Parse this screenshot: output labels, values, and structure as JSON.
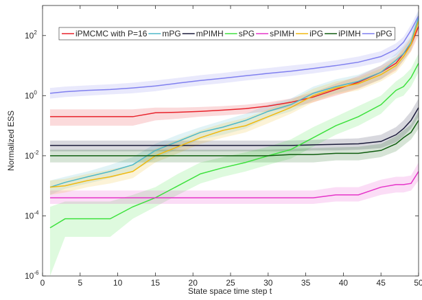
{
  "chart_data": {
    "type": "line",
    "xlabel": "State space time step t",
    "ylabel": "Normalized ESS",
    "x": [
      1,
      3,
      6,
      9,
      12,
      15,
      18,
      21,
      24,
      27,
      30,
      33,
      36,
      39,
      42,
      45,
      47,
      48,
      49,
      50
    ],
    "xlim": [
      0,
      50
    ],
    "xticks": [
      0,
      5,
      10,
      15,
      20,
      25,
      30,
      35,
      40,
      45,
      50
    ],
    "ylim": [
      1e-06,
      1000
    ],
    "log_y": true,
    "yticks": [
      {
        "value": 1e-06,
        "label": "10",
        "exponent": "-6"
      },
      {
        "value": 0.0001,
        "label": "10",
        "exponent": "-4"
      },
      {
        "value": 0.01,
        "label": "10",
        "exponent": "-2"
      },
      {
        "value": 1,
        "label": "10",
        "exponent": "0"
      },
      {
        "value": 100,
        "label": "10",
        "exponent": "2"
      }
    ],
    "grid": false,
    "legend": "upper left",
    "series": [
      {
        "name": "iPMCMC with P=16",
        "color": "#e8212a",
        "values": [
          0.2,
          0.2,
          0.2,
          0.2,
          0.2,
          0.27,
          0.28,
          0.3,
          0.33,
          0.37,
          0.45,
          0.6,
          0.9,
          1.6,
          2.8,
          6,
          12,
          25,
          50,
          200
        ],
        "lower": [
          0.1,
          0.1,
          0.1,
          0.1,
          0.1,
          0.15,
          0.17,
          0.2,
          0.22,
          0.25,
          0.3,
          0.4,
          0.6,
          1,
          1.7,
          3.5,
          7,
          15,
          30,
          100
        ],
        "upper": [
          0.35,
          0.35,
          0.35,
          0.35,
          0.35,
          0.4,
          0.4,
          0.42,
          0.45,
          0.5,
          0.6,
          0.8,
          1.3,
          2.5,
          4.5,
          10,
          20,
          40,
          90,
          400
        ]
      },
      {
        "name": "mPG",
        "color": "#4db8c8",
        "values": [
          0.0009,
          0.0013,
          0.002,
          0.003,
          0.005,
          0.015,
          0.03,
          0.06,
          0.09,
          0.15,
          0.3,
          0.5,
          1.2,
          2,
          3,
          6,
          15,
          25,
          60,
          400
        ],
        "lower": [
          0.0005,
          0.0008,
          0.0012,
          0.0018,
          0.003,
          0.008,
          0.017,
          0.035,
          0.05,
          0.08,
          0.18,
          0.3,
          0.7,
          1.2,
          1.8,
          3.5,
          8,
          15,
          35,
          200
        ],
        "upper": [
          0.0015,
          0.002,
          0.003,
          0.005,
          0.009,
          0.025,
          0.05,
          0.09,
          0.15,
          0.25,
          0.5,
          0.8,
          2,
          3.5,
          5,
          10,
          25,
          45,
          100,
          700
        ]
      },
      {
        "name": "mPIMH",
        "color": "#1a1a3a",
        "values": [
          0.022,
          0.022,
          0.022,
          0.022,
          0.022,
          0.022,
          0.022,
          0.022,
          0.022,
          0.022,
          0.022,
          0.022,
          0.023,
          0.024,
          0.025,
          0.03,
          0.05,
          0.08,
          0.15,
          0.4
        ],
        "lower": [
          0.014,
          0.014,
          0.014,
          0.014,
          0.014,
          0.014,
          0.014,
          0.014,
          0.014,
          0.014,
          0.014,
          0.014,
          0.015,
          0.015,
          0.016,
          0.018,
          0.028,
          0.045,
          0.08,
          0.2
        ],
        "upper": [
          0.032,
          0.032,
          0.032,
          0.032,
          0.032,
          0.032,
          0.032,
          0.032,
          0.032,
          0.032,
          0.032,
          0.032,
          0.034,
          0.036,
          0.038,
          0.05,
          0.09,
          0.15,
          0.3,
          0.8
        ]
      },
      {
        "name": "sPG",
        "color": "#3de13d",
        "values": [
          4e-05,
          8e-05,
          8e-05,
          8e-05,
          0.0002,
          0.0004,
          0.001,
          0.0025,
          0.004,
          0.006,
          0.01,
          0.016,
          0.04,
          0.1,
          0.2,
          0.5,
          1.5,
          2,
          4,
          12
        ],
        "lower": [
          1e-06,
          2e-05,
          2e-05,
          2e-05,
          8e-05,
          0.0002,
          0.0005,
          0.0012,
          0.002,
          0.003,
          0.005,
          0.008,
          0.02,
          0.05,
          0.1,
          0.25,
          0.8,
          1,
          2,
          6
        ],
        "upper": [
          0.0002,
          0.0003,
          0.0003,
          0.0003,
          0.0005,
          0.0009,
          0.0025,
          0.006,
          0.009,
          0.013,
          0.02,
          0.035,
          0.09,
          0.2,
          0.45,
          1,
          3,
          4.5,
          8,
          25
        ]
      },
      {
        "name": "sPIMH",
        "color": "#e533c8",
        "values": [
          0.0004,
          0.0004,
          0.0004,
          0.0004,
          0.0004,
          0.0004,
          0.0004,
          0.0004,
          0.0004,
          0.0004,
          0.0004,
          0.0004,
          0.0004,
          0.0005,
          0.0005,
          0.0009,
          0.0011,
          0.0011,
          0.0012,
          0.003
        ],
        "lower": [
          0.00025,
          0.00025,
          0.00025,
          0.00025,
          0.00025,
          0.00025,
          0.00025,
          0.00025,
          0.00025,
          0.00025,
          0.00025,
          0.00025,
          0.00025,
          0.0003,
          0.0003,
          0.0005,
          0.0006,
          0.0006,
          0.0007,
          0.0015
        ],
        "upper": [
          0.0007,
          0.0007,
          0.0007,
          0.0007,
          0.0007,
          0.0007,
          0.0007,
          0.0007,
          0.0007,
          0.0007,
          0.0007,
          0.0007,
          0.0007,
          0.0009,
          0.0009,
          0.0016,
          0.002,
          0.002,
          0.0022,
          0.006
        ]
      },
      {
        "name": "iPG",
        "color": "#f0b90f",
        "values": [
          0.0009,
          0.001,
          0.0015,
          0.002,
          0.003,
          0.01,
          0.02,
          0.04,
          0.07,
          0.1,
          0.2,
          0.4,
          1,
          1.8,
          2.5,
          5,
          10,
          20,
          50,
          300
        ],
        "lower": [
          0.0005,
          0.0006,
          0.0009,
          0.0012,
          0.0018,
          0.006,
          0.012,
          0.025,
          0.04,
          0.06,
          0.12,
          0.25,
          0.6,
          1.1,
          1.5,
          3,
          6,
          12,
          30,
          150
        ],
        "upper": [
          0.0015,
          0.0017,
          0.0025,
          0.0035,
          0.005,
          0.017,
          0.035,
          0.07,
          0.12,
          0.18,
          0.35,
          0.7,
          1.7,
          3,
          4,
          8,
          17,
          35,
          80,
          600
        ]
      },
      {
        "name": "iPIMH",
        "color": "#0e5c0e",
        "values": [
          0.01,
          0.01,
          0.01,
          0.01,
          0.01,
          0.01,
          0.01,
          0.01,
          0.01,
          0.01,
          0.01,
          0.011,
          0.011,
          0.012,
          0.012,
          0.015,
          0.025,
          0.04,
          0.06,
          0.15
        ],
        "lower": [
          0.006,
          0.006,
          0.006,
          0.006,
          0.006,
          0.006,
          0.006,
          0.006,
          0.006,
          0.006,
          0.006,
          0.006,
          0.006,
          0.007,
          0.007,
          0.009,
          0.014,
          0.022,
          0.035,
          0.08
        ],
        "upper": [
          0.016,
          0.016,
          0.016,
          0.016,
          0.016,
          0.016,
          0.016,
          0.016,
          0.016,
          0.016,
          0.016,
          0.017,
          0.018,
          0.019,
          0.02,
          0.025,
          0.045,
          0.07,
          0.11,
          0.3
        ]
      },
      {
        "name": "pPG",
        "color": "#7f7fef",
        "values": [
          1.2,
          1.35,
          1.5,
          1.6,
          1.8,
          2.1,
          2.6,
          3.2,
          3.8,
          4.6,
          5.5,
          6.5,
          8,
          10,
          13,
          20,
          35,
          60,
          150,
          450
        ],
        "lower": [
          0.8,
          0.9,
          1,
          1.1,
          1.2,
          1.4,
          1.8,
          2.2,
          2.6,
          3.2,
          3.8,
          4.5,
          5.5,
          7,
          9,
          13,
          22,
          40,
          100,
          300
        ],
        "upper": [
          1.8,
          2,
          2.2,
          2.4,
          2.7,
          3.2,
          3.9,
          4.8,
          5.7,
          7,
          8.3,
          10,
          12,
          15,
          20,
          30,
          55,
          90,
          230,
          700
        ]
      }
    ]
  }
}
